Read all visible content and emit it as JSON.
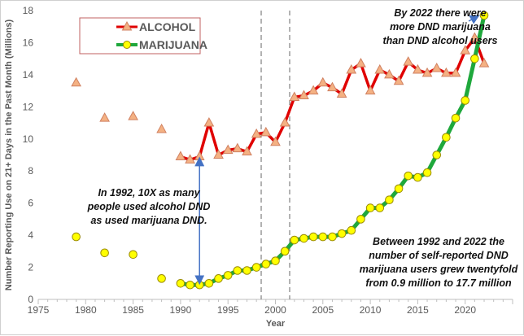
{
  "chart_data": {
    "type": "line",
    "xlabel": "Year",
    "ylabel": "Number Reporting Use on 21+ Days in the Past Month (Millions)",
    "xlim": [
      1975,
      2025
    ],
    "ylim": [
      0,
      18
    ],
    "xticks": [
      1975,
      1980,
      1985,
      1990,
      1995,
      2000,
      2005,
      2010,
      2015,
      2020
    ],
    "yticks": [
      0,
      2,
      4,
      6,
      8,
      10,
      12,
      14,
      16,
      18
    ],
    "legend_position": "top-left",
    "grid": false,
    "vlines": [
      1998.5,
      2001.5
    ],
    "series": [
      {
        "name": "ALCOHOL",
        "color": "#e00000",
        "marker": "triangle",
        "marker_color": "#f4b183",
        "x": [
          1979,
          1982,
          1985,
          1988,
          1990,
          1991,
          1992,
          1993,
          1994,
          1995,
          1996,
          1997,
          1998,
          1999,
          2000,
          2001,
          2002,
          2003,
          2004,
          2005,
          2006,
          2007,
          2008,
          2009,
          2010,
          2011,
          2012,
          2013,
          2014,
          2015,
          2016,
          2017,
          2018,
          2019,
          2020,
          2021,
          2022
        ],
        "y": [
          13.5,
          11.3,
          11.4,
          10.6,
          8.9,
          8.7,
          8.9,
          11.0,
          9.0,
          9.3,
          9.4,
          9.2,
          10.3,
          10.4,
          9.8,
          11.0,
          12.6,
          12.7,
          13.0,
          13.5,
          13.2,
          12.8,
          14.3,
          14.7,
          13.0,
          14.3,
          14.0,
          13.6,
          14.8,
          14.3,
          14.1,
          14.4,
          14.1,
          14.1,
          15.5,
          16.3,
          14.7
        ]
      },
      {
        "name": "MARIJUANA",
        "color": "#1fa83c",
        "marker": "circle",
        "marker_color": "#ffff00",
        "x": [
          1979,
          1982,
          1985,
          1988,
          1990,
          1991,
          1992,
          1993,
          1994,
          1995,
          1996,
          1997,
          1998,
          1999,
          2000,
          2001,
          2002,
          2003,
          2004,
          2005,
          2006,
          2007,
          2008,
          2009,
          2010,
          2011,
          2012,
          2013,
          2014,
          2015,
          2016,
          2017,
          2018,
          2019,
          2020,
          2021,
          2022
        ],
        "y": [
          3.9,
          2.9,
          2.8,
          1.3,
          1.0,
          0.9,
          0.9,
          1.0,
          1.3,
          1.5,
          1.8,
          1.8,
          2.0,
          2.2,
          2.4,
          3.0,
          3.7,
          3.8,
          3.9,
          3.9,
          3.9,
          4.1,
          4.3,
          5.0,
          5.7,
          5.7,
          6.2,
          6.9,
          7.7,
          7.6,
          7.9,
          9.0,
          10.1,
          11.3,
          12.4,
          15.0,
          17.7
        ]
      }
    ],
    "annotations": {
      "a1992": [
        "In 1992, 10X as many",
        "people used alcohol DND",
        "as used marijuana DND."
      ],
      "a2022": [
        "By 2022  there were",
        "more DND marijuana",
        "than DND alcohol users"
      ],
      "growth": [
        "Between 1992 and 2022 the",
        "number of self-reported DND",
        "marijuana users grew twentyfold",
        "from 0.9 million to 17.7 million"
      ]
    }
  }
}
